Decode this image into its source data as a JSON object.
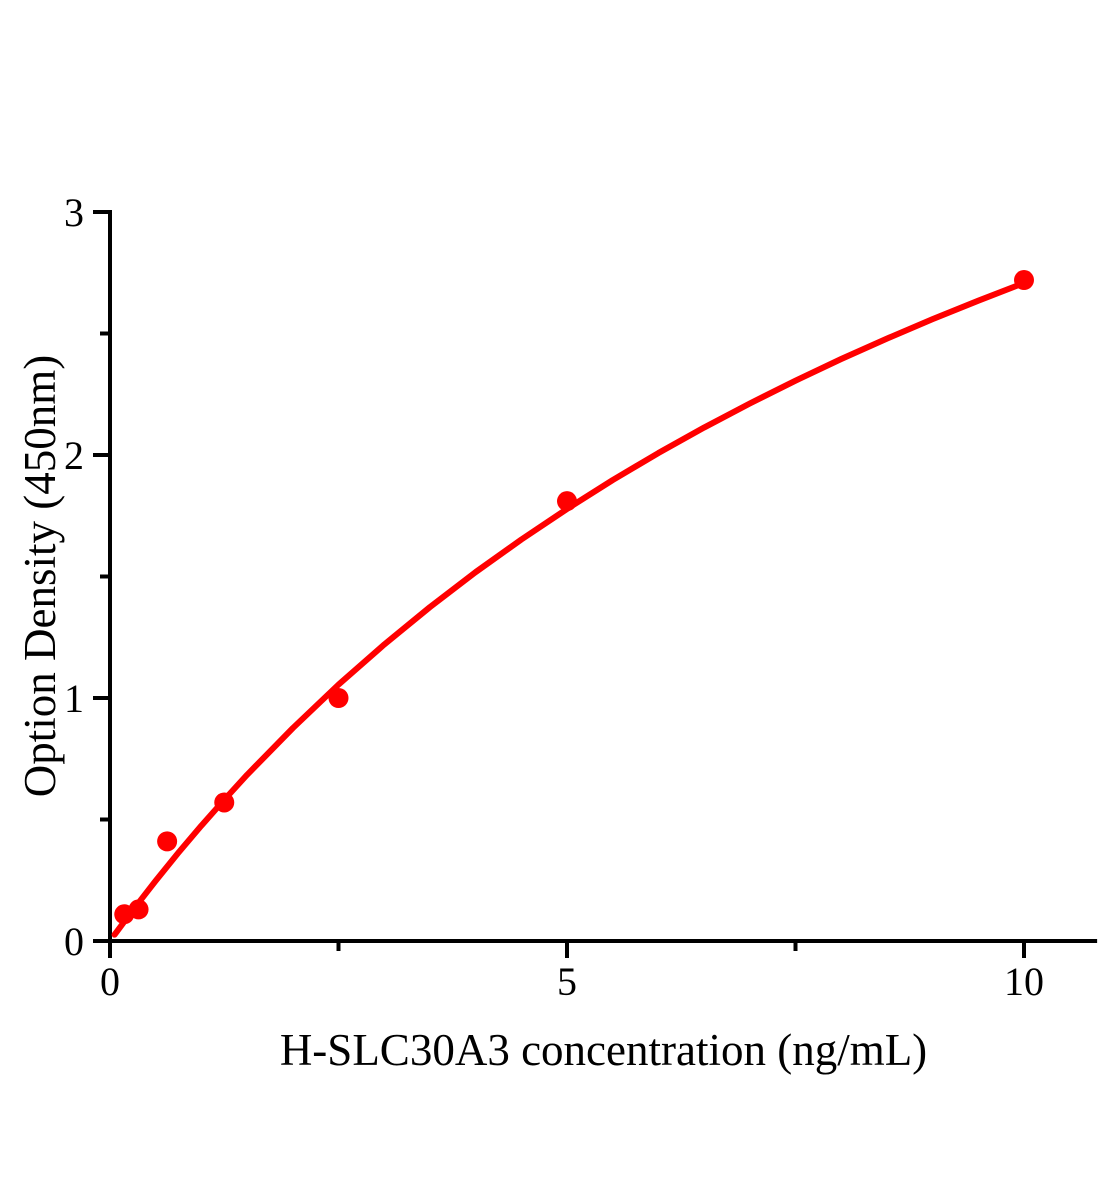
{
  "figure": {
    "background_color": "#ffffff",
    "axis_color": "#000000",
    "accent_color": "#ff0000"
  },
  "chart_data": {
    "type": "scatter",
    "title": "",
    "xlabel": "H-SLC30A3 concentration (ng/mL)",
    "ylabel": "Option Density (450nm)",
    "xlim": [
      0,
      10.8
    ],
    "ylim": [
      0,
      3
    ],
    "grid": false,
    "legend": null,
    "x_major_ticks": [
      0,
      5,
      10
    ],
    "x_minor_ticks": [
      2.5,
      7.5
    ],
    "y_major_ticks": [
      0,
      1,
      2,
      3
    ],
    "y_minor_ticks": [
      0.5,
      1.5,
      2.5
    ],
    "series": [
      {
        "name": "standard-points",
        "type": "scatter",
        "color": "#ff0000",
        "x": [
          0.156,
          0.3125,
          0.625,
          1.25,
          2.5,
          5,
          10
        ],
        "y": [
          0.11,
          0.13,
          0.41,
          0.57,
          1.0,
          1.81,
          2.72
        ]
      },
      {
        "name": "fit-curve",
        "type": "line",
        "color": "#ff0000",
        "x": [
          0.05,
          0.25,
          0.5,
          0.75,
          1,
          1.25,
          1.5,
          2,
          2.5,
          3,
          3.5,
          4,
          4.5,
          5,
          5.5,
          6,
          6.5,
          7,
          7.5,
          8,
          8.5,
          9,
          9.5,
          10
        ],
        "y": [
          0.026,
          0.127,
          0.248,
          0.364,
          0.475,
          0.581,
          0.684,
          0.876,
          1.055,
          1.22,
          1.374,
          1.518,
          1.652,
          1.778,
          1.897,
          2.008,
          2.113,
          2.212,
          2.306,
          2.395,
          2.479,
          2.559,
          2.635,
          2.708
        ]
      }
    ]
  }
}
